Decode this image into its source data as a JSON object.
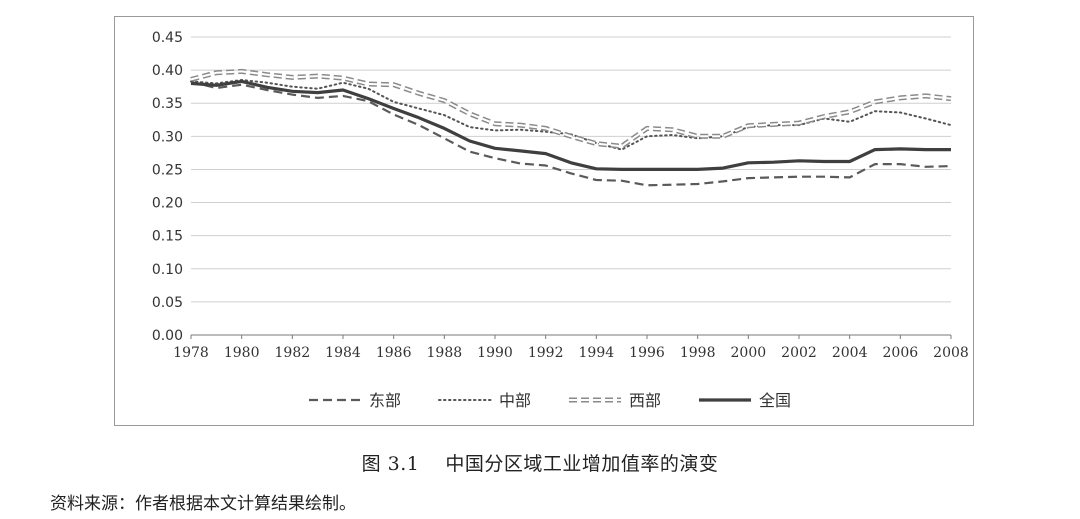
{
  "caption": {
    "figure_number": "图 3.1",
    "title": "中国分区域工业增加值率的演变"
  },
  "source_note": "资料来源：作者根据本文计算结果绘制。",
  "chart_data": {
    "type": "line",
    "title": "",
    "xlabel": "",
    "ylabel": "",
    "ylim": [
      0,
      0.45
    ],
    "yticks": [
      "0.00",
      "0.05",
      "0.10",
      "0.15",
      "0.20",
      "0.25",
      "0.30",
      "0.35",
      "0.40",
      "0.45"
    ],
    "xticks": [
      "1978",
      "1980",
      "1982",
      "1984",
      "1986",
      "1988",
      "1990",
      "1992",
      "1994",
      "1996",
      "1998",
      "2000",
      "2002",
      "2004",
      "2006",
      "2008"
    ],
    "grid": "horizontal",
    "legend_position": "bottom",
    "x": [
      1978,
      1979,
      1980,
      1981,
      1982,
      1983,
      1984,
      1985,
      1986,
      1987,
      1988,
      1989,
      1990,
      1991,
      1992,
      1993,
      1994,
      1995,
      1996,
      1997,
      1998,
      1999,
      2000,
      2001,
      2002,
      2003,
      2004,
      2005,
      2006,
      2007,
      2008
    ],
    "series": [
      {
        "name": "东部",
        "style": "dashed",
        "values": [
          0.382,
          0.373,
          0.378,
          0.37,
          0.363,
          0.358,
          0.361,
          0.353,
          0.333,
          0.317,
          0.297,
          0.277,
          0.267,
          0.259,
          0.256,
          0.244,
          0.234,
          0.233,
          0.226,
          0.227,
          0.228,
          0.232,
          0.237,
          0.238,
          0.239,
          0.239,
          0.238,
          0.258,
          0.258,
          0.254,
          0.255
        ]
      },
      {
        "name": "中部",
        "style": "dotted",
        "values": [
          0.383,
          0.38,
          0.385,
          0.381,
          0.375,
          0.372,
          0.381,
          0.372,
          0.352,
          0.342,
          0.332,
          0.314,
          0.309,
          0.31,
          0.307,
          0.303,
          0.29,
          0.28,
          0.3,
          0.302,
          0.297,
          0.3,
          0.314,
          0.317,
          0.317,
          0.327,
          0.322,
          0.338,
          0.336,
          0.327,
          0.317
        ]
      },
      {
        "name": "西部",
        "style": "double-dashed",
        "values": [
          0.386,
          0.396,
          0.398,
          0.393,
          0.389,
          0.391,
          0.388,
          0.379,
          0.378,
          0.365,
          0.354,
          0.334,
          0.319,
          0.317,
          0.312,
          0.3,
          0.289,
          0.285,
          0.312,
          0.31,
          0.3,
          0.3,
          0.316,
          0.318,
          0.32,
          0.33,
          0.337,
          0.352,
          0.358,
          0.361,
          0.357
        ]
      },
      {
        "name": "全国",
        "style": "solid",
        "values": [
          0.38,
          0.377,
          0.383,
          0.374,
          0.368,
          0.366,
          0.37,
          0.357,
          0.342,
          0.328,
          0.312,
          0.293,
          0.282,
          0.278,
          0.274,
          0.26,
          0.251,
          0.25,
          0.25,
          0.25,
          0.25,
          0.252,
          0.26,
          0.261,
          0.263,
          0.262,
          0.262,
          0.28,
          0.281,
          0.28,
          0.28
        ]
      }
    ]
  }
}
